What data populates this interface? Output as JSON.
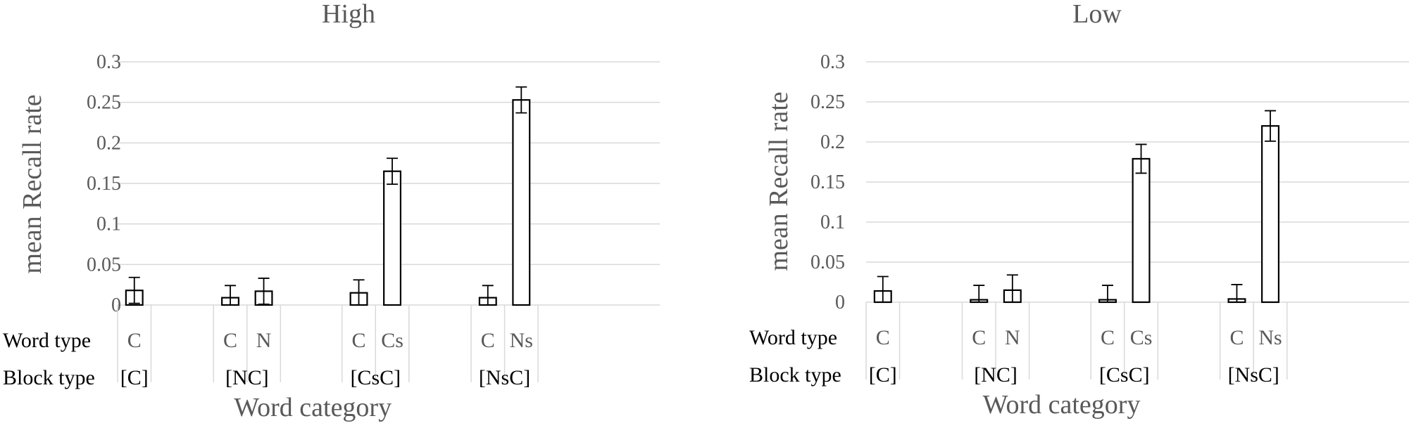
{
  "chart_data": [
    {
      "type": "bar",
      "title": "High",
      "ylabel": "mean Recall rate",
      "xlabel": "Word category",
      "ylim": [
        0,
        0.3
      ],
      "yticks": [
        "0",
        "0.05",
        "0.1",
        "0.15",
        "0.2",
        "0.25",
        "0.3"
      ],
      "grid": true,
      "row_labels": {
        "word_type": "Word type",
        "block_type": "Block type"
      },
      "groups": [
        {
          "block": "[C]",
          "bars": [
            {
              "word": "C",
              "value": 0.018,
              "err": 0.016
            }
          ]
        },
        {
          "block": "[NC]",
          "bars": [
            {
              "word": "C",
              "value": 0.009,
              "err": 0.015
            },
            {
              "word": "N",
              "value": 0.017,
              "err": 0.016
            }
          ]
        },
        {
          "block": "[CsC]",
          "bars": [
            {
              "word": "C",
              "value": 0.015,
              "err": 0.016
            },
            {
              "word": "Cs",
              "value": 0.165,
              "err": 0.016
            }
          ]
        },
        {
          "block": "[NsC]",
          "bars": [
            {
              "word": "C",
              "value": 0.009,
              "err": 0.015
            },
            {
              "word": "Ns",
              "value": 0.253,
              "err": 0.016
            }
          ]
        }
      ]
    },
    {
      "type": "bar",
      "title": "Low",
      "ylabel": "mean Recall rate",
      "xlabel": "Word category",
      "ylim": [
        0,
        0.3
      ],
      "yticks": [
        "0",
        "0.05",
        "0.1",
        "0.15",
        "0.2",
        "0.25",
        "0.3"
      ],
      "grid": true,
      "row_labels": {
        "word_type": "Word type",
        "block_type": "Block type"
      },
      "groups": [
        {
          "block": "[C]",
          "bars": [
            {
              "word": "C",
              "value": 0.014,
              "err": 0.018
            }
          ]
        },
        {
          "block": "[NC]",
          "bars": [
            {
              "word": "C",
              "value": 0.003,
              "err": 0.018
            },
            {
              "word": "N",
              "value": 0.015,
              "err": 0.019
            }
          ]
        },
        {
          "block": "[CsC]",
          "bars": [
            {
              "word": "C",
              "value": 0.003,
              "err": 0.018
            },
            {
              "word": "Cs",
              "value": 0.179,
              "err": 0.018
            }
          ]
        },
        {
          "block": "[NsC]",
          "bars": [
            {
              "word": "C",
              "value": 0.004,
              "err": 0.018
            },
            {
              "word": "Ns",
              "value": 0.22,
              "err": 0.019
            }
          ]
        }
      ]
    }
  ]
}
